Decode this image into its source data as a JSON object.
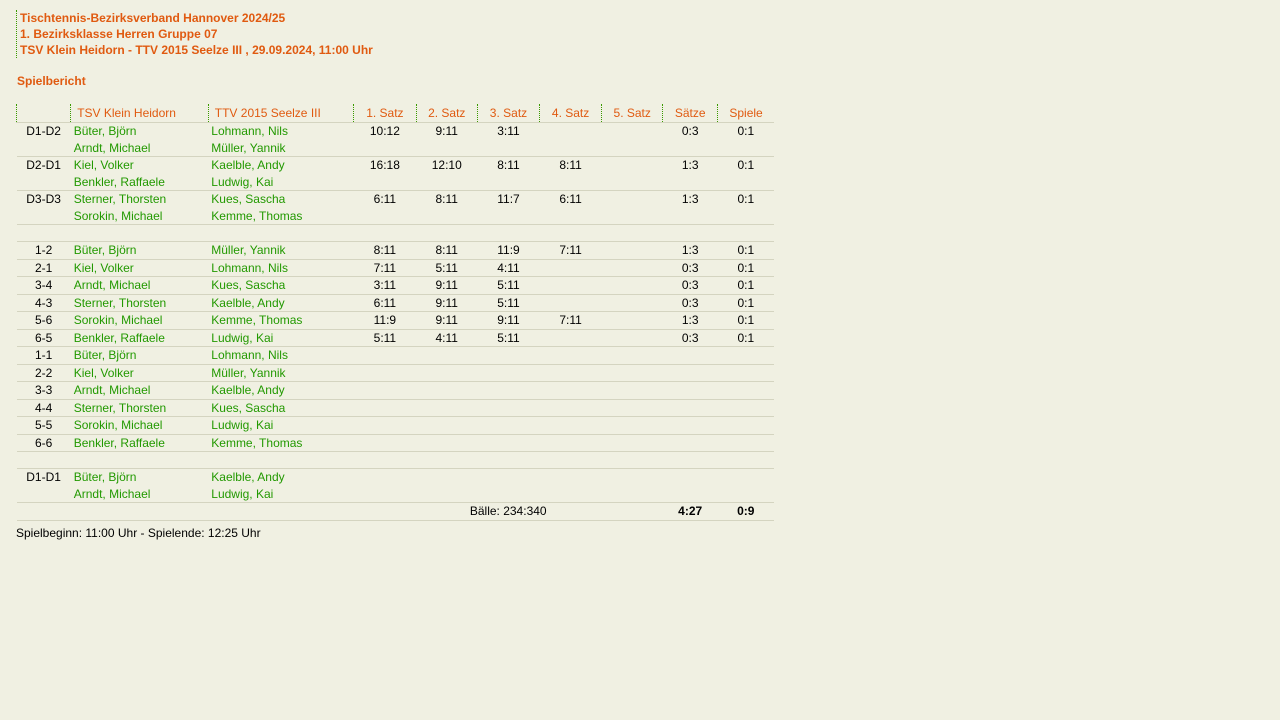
{
  "header": {
    "line1": "Tischtennis-Bezirksverband Hannover 2024/25",
    "line2": "1. Bezirksklasse Herren Gruppe 07",
    "line3": "TSV Klein Heidorn - TTV 2015 Seelze III , 29.09.2024, 11:00 Uhr"
  },
  "section_title": "Spielbericht",
  "columns": [
    "",
    "TSV Klein Heidorn",
    "TTV 2015 Seelze III",
    "1. Satz",
    "2. Satz",
    "3. Satz",
    "4. Satz",
    "5. Satz",
    "Sätze",
    "Spiele"
  ],
  "rows": [
    {
      "pair": "D1-D2",
      "home": [
        "Büter, Björn",
        "Arndt, Michael"
      ],
      "guest": [
        "Lohmann, Nils",
        "Müller, Yannik"
      ],
      "sets": [
        "10:12",
        "9:11",
        "3:11",
        "",
        ""
      ],
      "saetze": "0:3",
      "spiele": "0:1"
    },
    {
      "pair": "D2-D1",
      "home": [
        "Kiel, Volker",
        "Benkler, Raffaele"
      ],
      "guest": [
        "Kaelble, Andy",
        "Ludwig, Kai"
      ],
      "sets": [
        "16:18",
        "12:10",
        "8:11",
        "8:11",
        ""
      ],
      "saetze": "1:3",
      "spiele": "0:1"
    },
    {
      "pair": "D3-D3",
      "home": [
        "Sterner, Thorsten",
        "Sorokin, Michael"
      ],
      "guest": [
        "Kues, Sascha",
        "Kemme, Thomas"
      ],
      "sets": [
        "6:11",
        "8:11",
        "11:7",
        "6:11",
        ""
      ],
      "saetze": "1:3",
      "spiele": "0:1"
    },
    {
      "spacer": true
    },
    {
      "pair": "1-2",
      "home": [
        "Büter, Björn"
      ],
      "guest": [
        "Müller, Yannik"
      ],
      "sets": [
        "8:11",
        "8:11",
        "11:9",
        "7:11",
        ""
      ],
      "saetze": "1:3",
      "spiele": "0:1"
    },
    {
      "pair": "2-1",
      "home": [
        "Kiel, Volker"
      ],
      "guest": [
        "Lohmann, Nils"
      ],
      "sets": [
        "7:11",
        "5:11",
        "4:11",
        "",
        ""
      ],
      "saetze": "0:3",
      "spiele": "0:1"
    },
    {
      "pair": "3-4",
      "home": [
        "Arndt, Michael"
      ],
      "guest": [
        "Kues, Sascha"
      ],
      "sets": [
        "3:11",
        "9:11",
        "5:11",
        "",
        ""
      ],
      "saetze": "0:3",
      "spiele": "0:1"
    },
    {
      "pair": "4-3",
      "home": [
        "Sterner, Thorsten"
      ],
      "guest": [
        "Kaelble, Andy"
      ],
      "sets": [
        "6:11",
        "9:11",
        "5:11",
        "",
        ""
      ],
      "saetze": "0:3",
      "spiele": "0:1"
    },
    {
      "pair": "5-6",
      "home": [
        "Sorokin, Michael"
      ],
      "guest": [
        "Kemme, Thomas"
      ],
      "sets": [
        "11:9",
        "9:11",
        "9:11",
        "7:11",
        ""
      ],
      "saetze": "1:3",
      "spiele": "0:1"
    },
    {
      "pair": "6-5",
      "home": [
        "Benkler, Raffaele"
      ],
      "guest": [
        "Ludwig, Kai"
      ],
      "sets": [
        "5:11",
        "4:11",
        "5:11",
        "",
        ""
      ],
      "saetze": "0:3",
      "spiele": "0:1"
    },
    {
      "pair": "1-1",
      "home": [
        "Büter, Björn"
      ],
      "guest": [
        "Lohmann, Nils"
      ],
      "sets": [
        "",
        "",
        "",
        "",
        ""
      ],
      "saetze": "",
      "spiele": ""
    },
    {
      "pair": "2-2",
      "home": [
        "Kiel, Volker"
      ],
      "guest": [
        "Müller, Yannik"
      ],
      "sets": [
        "",
        "",
        "",
        "",
        ""
      ],
      "saetze": "",
      "spiele": ""
    },
    {
      "pair": "3-3",
      "home": [
        "Arndt, Michael"
      ],
      "guest": [
        "Kaelble, Andy"
      ],
      "sets": [
        "",
        "",
        "",
        "",
        ""
      ],
      "saetze": "",
      "spiele": ""
    },
    {
      "pair": "4-4",
      "home": [
        "Sterner, Thorsten"
      ],
      "guest": [
        "Kues, Sascha"
      ],
      "sets": [
        "",
        "",
        "",
        "",
        ""
      ],
      "saetze": "",
      "spiele": ""
    },
    {
      "pair": "5-5",
      "home": [
        "Sorokin, Michael"
      ],
      "guest": [
        "Ludwig, Kai"
      ],
      "sets": [
        "",
        "",
        "",
        "",
        ""
      ],
      "saetze": "",
      "spiele": ""
    },
    {
      "pair": "6-6",
      "home": [
        "Benkler, Raffaele"
      ],
      "guest": [
        "Kemme, Thomas"
      ],
      "sets": [
        "",
        "",
        "",
        "",
        ""
      ],
      "saetze": "",
      "spiele": ""
    },
    {
      "spacer": true
    },
    {
      "pair": "D1-D1",
      "home": [
        "Büter, Björn",
        "Arndt, Michael"
      ],
      "guest": [
        "Kaelble, Andy",
        "Ludwig, Kai"
      ],
      "sets": [
        "",
        "",
        "",
        "",
        ""
      ],
      "saetze": "",
      "spiele": ""
    }
  ],
  "totals": {
    "baelle": "Bälle: 234:340",
    "saetze": "4:27",
    "spiele": "0:9"
  },
  "footer": "Spielbeginn: 11:00 Uhr - Spielende: 12:25 Uhr"
}
